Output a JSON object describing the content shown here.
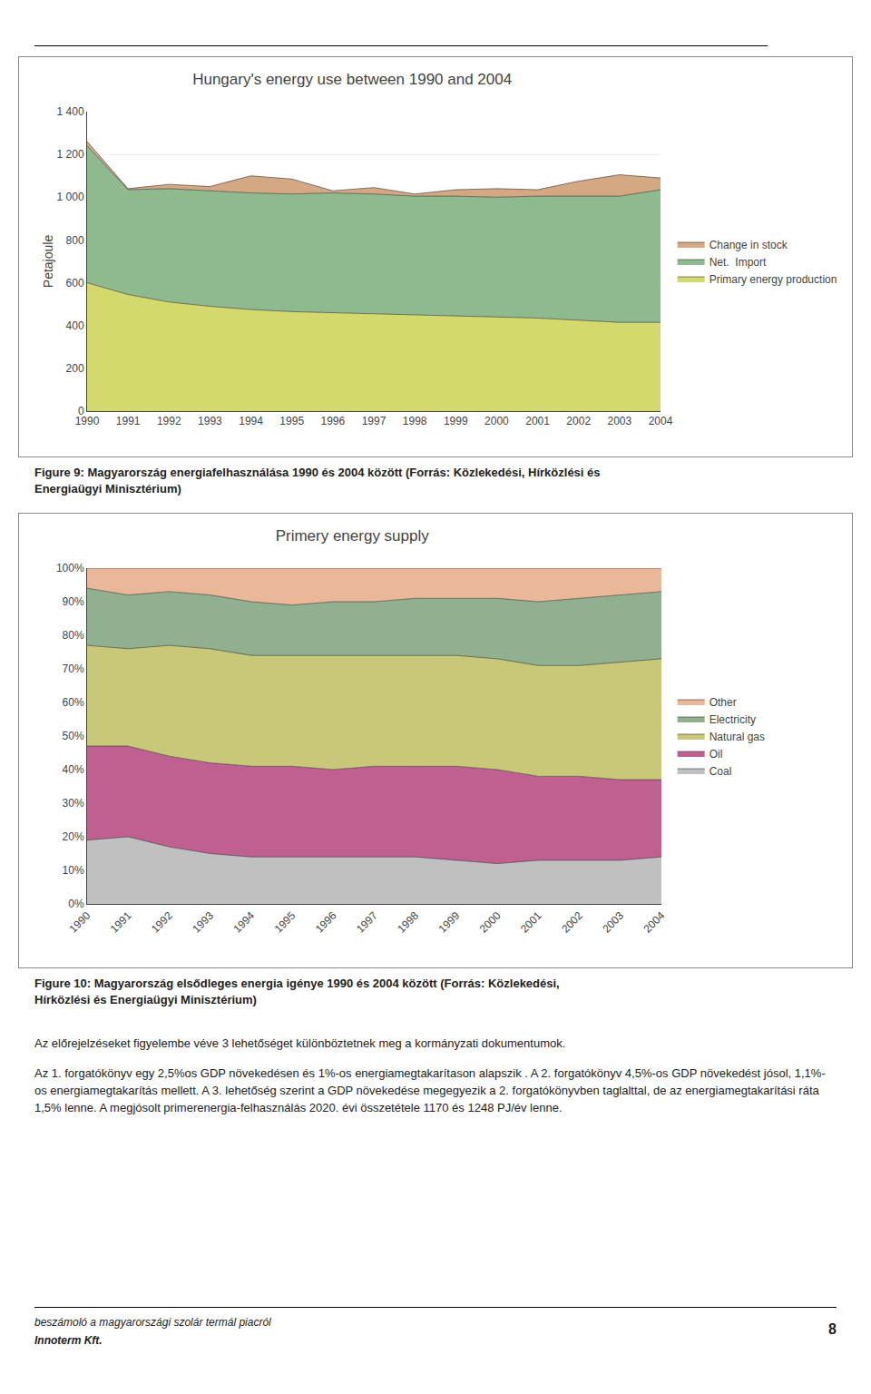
{
  "chart_data": [
    {
      "type": "area",
      "stacked": true,
      "title": "Hungary's energy use between 1990 and 2004",
      "ylabel": "Petajoule",
      "x": [
        1990,
        1991,
        1992,
        1993,
        1994,
        1995,
        1996,
        1997,
        1998,
        1999,
        2000,
        2001,
        2002,
        2003,
        2004
      ],
      "series": [
        {
          "name": "Primary energy production",
          "color": "#d4d96e",
          "values": [
            600,
            545,
            510,
            490,
            475,
            465,
            460,
            455,
            450,
            445,
            440,
            435,
            425,
            415,
            415
          ]
        },
        {
          "name": "Net.  Import",
          "color": "#8fba8f",
          "values": [
            640,
            490,
            530,
            540,
            545,
            550,
            560,
            560,
            555,
            560,
            560,
            570,
            580,
            590,
            620
          ]
        },
        {
          "name": "Change in stock",
          "color": "#d4a882",
          "values": [
            20,
            5,
            20,
            20,
            80,
            70,
            10,
            30,
            10,
            30,
            40,
            30,
            70,
            100,
            55
          ]
        }
      ],
      "xlim": [
        1990,
        2004
      ],
      "xticks": [
        1990,
        1991,
        1992,
        1993,
        1994,
        1995,
        1996,
        1997,
        1998,
        1999,
        2000,
        2001,
        2002,
        2003,
        2004
      ],
      "ylim": [
        0,
        1400
      ],
      "yticks": [
        0,
        200,
        400,
        600,
        800,
        {
          "value": 1000,
          "label": "1 000"
        },
        {
          "value": 1200,
          "label": "1 200"
        },
        {
          "value": 1400,
          "label": "1 400"
        }
      ],
      "grid": true,
      "legend": "right",
      "annotations": [
        "Figure 9: Magyarország energiafelhasználása 1990 és 2004 között (Forrás: Közlekedési, Hírközlési és",
        "Energiaügyi Minisztérium)"
      ]
    },
    {
      "type": "area",
      "stacked": true,
      "title": "Primery energy supply",
      "x": [
        1990,
        1991,
        1992,
        1993,
        1994,
        1995,
        1996,
        1997,
        1998,
        1999,
        2000,
        2001,
        2002,
        2003,
        2004
      ],
      "series": [
        {
          "name": "Coal",
          "color": "#c0c0c0",
          "values": [
            19,
            20,
            17,
            15,
            14,
            14,
            14,
            14,
            14,
            13,
            12,
            13,
            13,
            13,
            14
          ]
        },
        {
          "name": "Oil",
          "color": "#c06090",
          "values": [
            28,
            27,
            27,
            27,
            27,
            27,
            26,
            27,
            27,
            28,
            28,
            25,
            25,
            24,
            23
          ]
        },
        {
          "name": "Natural gas",
          "color": "#c8c878",
          "values": [
            30,
            29,
            33,
            34,
            33,
            33,
            34,
            33,
            33,
            33,
            33,
            33,
            33,
            35,
            36
          ]
        },
        {
          "name": "Electricity",
          "color": "#90b090",
          "values": [
            17,
            16,
            16,
            16,
            16,
            15,
            16,
            16,
            17,
            17,
            18,
            19,
            20,
            20,
            20
          ]
        },
        {
          "name": "Other",
          "color": "#e8b898",
          "values": [
            6,
            8,
            7,
            8,
            10,
            11,
            10,
            10,
            9,
            9,
            9,
            10,
            9,
            8,
            7
          ]
        }
      ],
      "xlim": [
        1990,
        2004
      ],
      "xticks": [
        1990,
        1991,
        1992,
        1993,
        1994,
        1995,
        1996,
        1997,
        1998,
        1999,
        2000,
        2001,
        2002,
        2003,
        2004
      ],
      "ylim": [
        0,
        100
      ],
      "yticks": [
        {
          "value": 0,
          "label": "0%"
        },
        {
          "value": 10,
          "label": "10%"
        },
        {
          "value": 20,
          "label": "20%"
        },
        {
          "value": 30,
          "label": "30%"
        },
        {
          "value": 40,
          "label": "40%"
        },
        {
          "value": 50,
          "label": "50%"
        },
        {
          "value": 60,
          "label": "60%"
        },
        {
          "value": 70,
          "label": "70%"
        },
        {
          "value": 80,
          "label": "80%"
        },
        {
          "value": 90,
          "label": "90%"
        },
        {
          "value": 100,
          "label": "100%"
        }
      ],
      "grid": true,
      "legend": "right",
      "annotations": [
        "Figure 10: Magyarország elsődleges energia igénye 1990 és 2004 között (Forrás: Közlekedési,",
        "Hírközlési és Energiaügyi Minisztérium)"
      ]
    }
  ],
  "annotations": [
    "Az előrejelzéseket figyelembe véve 3 lehetőséget különböztetnek meg a kormányzati dokumentumok.",
    "Az 1. forgatókönyv egy 2,5%os GDP növekedésen és 1%-os energiamegtakarítason alapszik . A 2. forgatókönyv 4,5%-os GDP növekedést jósol, 1,1%-os energiamegtakarítás mellett. A 3. lehetőség szerint a GDP növekedése megegyezik a 2. forgatókönyvben taglalttal, de az energiamegtakarítási ráta 1,5% lenne. A megjósolt primerenergia-felhasználás 2020. évi összetétele 1170 és 1248 PJ/év lenne."
  ],
  "footer": [
    "beszámoló a magyarországi szolár termál piacról",
    "Innoterm Kft.",
    "8"
  ]
}
